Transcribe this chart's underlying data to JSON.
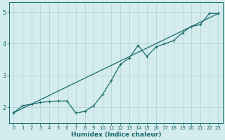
{
  "xlabel": "Humidex (Indice chaleur)",
  "bg_color": "#d4ecee",
  "grid_color": "#b8d8db",
  "line_color": "#1a6b6b",
  "xlim": [
    -0.5,
    23.5
  ],
  "ylim": [
    1.5,
    5.3
  ],
  "yticks": [
    2,
    3,
    4,
    5
  ],
  "xticks": [
    0,
    1,
    2,
    3,
    4,
    5,
    6,
    7,
    8,
    9,
    10,
    11,
    12,
    13,
    14,
    15,
    16,
    17,
    18,
    19,
    20,
    21,
    22,
    23
  ],
  "data_x": [
    0,
    1,
    2,
    3,
    4,
    5,
    6,
    7,
    8,
    9,
    10,
    11,
    12,
    13,
    14,
    15,
    16,
    17,
    18,
    19,
    20,
    21,
    22,
    23
  ],
  "data_y": [
    1.83,
    2.05,
    2.1,
    2.15,
    2.18,
    2.2,
    2.2,
    1.82,
    1.87,
    2.05,
    2.4,
    2.85,
    3.35,
    3.55,
    3.95,
    3.6,
    3.9,
    4.0,
    4.1,
    4.35,
    4.55,
    4.6,
    4.95,
    4.95
  ],
  "trend_x": [
    0,
    23
  ],
  "trend_y": [
    1.83,
    4.95
  ]
}
